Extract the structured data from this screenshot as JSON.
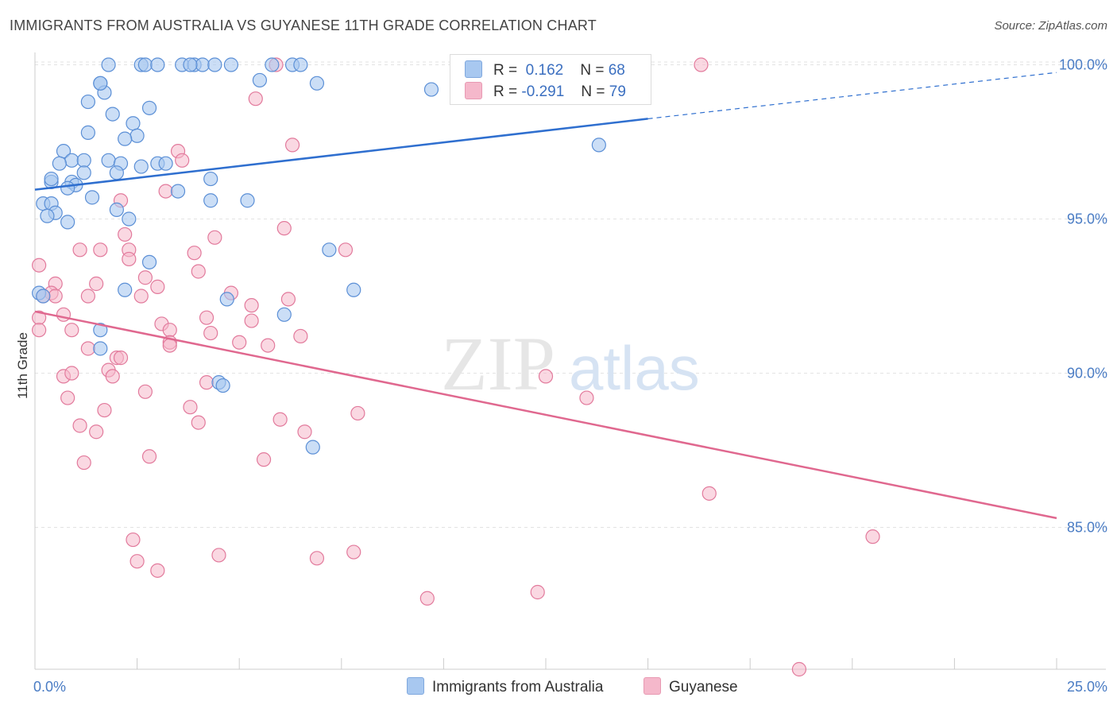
{
  "header": {
    "title": "IMMIGRANTS FROM AUSTRALIA VS GUYANESE 11TH GRADE CORRELATION CHART",
    "source": "Source: ZipAtlas.com"
  },
  "watermark": {
    "zip": "ZIP",
    "atlas": "atlas"
  },
  "legend": {
    "rows": [
      {
        "r_label": "R =",
        "r_value": "0.162",
        "n_label": "N =",
        "n_value": "68",
        "color": "#a8c8f0"
      },
      {
        "r_label": "R =",
        "r_value": "-0.291",
        "n_label": "N =",
        "n_value": "79",
        "color": "#f5b8cb"
      }
    ]
  },
  "bottom_legend": [
    {
      "label": "Immigrants from Australia",
      "color": "#a8c8f0"
    },
    {
      "label": "Guyanese",
      "color": "#f5b8cb"
    }
  ],
  "colors": {
    "blue_fill": "#a8c8f0",
    "blue_stroke": "#5b8fd6",
    "blue_line": "#2f6fcf",
    "pink_fill": "#f5b8cb",
    "pink_stroke": "#e27a9c",
    "pink_line": "#e0688f",
    "grid": "#e3e3e3",
    "axis": "#cccccc"
  },
  "chart_data": {
    "type": "scatter",
    "title": "IMMIGRANTS FROM AUSTRALIA VS GUYANESE 11TH GRADE CORRELATION CHART",
    "xlabel": "",
    "ylabel": "11th Grade",
    "xlim": [
      0,
      25
    ],
    "ylim": [
      80.4,
      100.4
    ],
    "x_tick_labels": [
      "0.0%",
      "25.0%"
    ],
    "y_ticks": [
      85,
      90,
      95,
      100
    ],
    "y_tick_labels": [
      "85.0%",
      "90.0%",
      "95.0%",
      "100.0%"
    ],
    "grid": true,
    "legend_position": "top-center",
    "series": [
      {
        "name": "Immigrants from Australia",
        "r": 0.162,
        "n": 68,
        "trend": {
          "x_start": 0.0,
          "y_start": 95.95,
          "x_solid_end": 15.0,
          "y_solid_end": 98.25,
          "x_end": 25.0,
          "y_end": 99.75
        },
        "points": [
          [
            2.6,
            100
          ],
          [
            2.7,
            100
          ],
          [
            3.0,
            100
          ],
          [
            3.6,
            100
          ],
          [
            3.9,
            100
          ],
          [
            4.1,
            100
          ],
          [
            4.4,
            100
          ],
          [
            5.8,
            100
          ],
          [
            6.3,
            100
          ],
          [
            6.5,
            100
          ],
          [
            1.8,
            100
          ],
          [
            1.6,
            99.4
          ],
          [
            5.5,
            99.5
          ],
          [
            6.9,
            99.4
          ],
          [
            9.7,
            99.2
          ],
          [
            1.7,
            99.1
          ],
          [
            1.3,
            98.8
          ],
          [
            2.8,
            98.6
          ],
          [
            1.9,
            98.4
          ],
          [
            2.4,
            98.1
          ],
          [
            1.3,
            97.8
          ],
          [
            2.5,
            97.7
          ],
          [
            2.2,
            97.6
          ],
          [
            13.8,
            97.4
          ],
          [
            0.7,
            97.2
          ],
          [
            0.9,
            96.9
          ],
          [
            1.2,
            96.9
          ],
          [
            1.8,
            96.9
          ],
          [
            2.1,
            96.8
          ],
          [
            3.0,
            96.8
          ],
          [
            3.2,
            96.8
          ],
          [
            2.6,
            96.7
          ],
          [
            0.6,
            96.8
          ],
          [
            1.2,
            96.5
          ],
          [
            2.0,
            96.5
          ],
          [
            0.4,
            96.2
          ],
          [
            0.4,
            96.3
          ],
          [
            0.9,
            96.2
          ],
          [
            1.0,
            96.1
          ],
          [
            4.3,
            96.3
          ],
          [
            0.8,
            96.0
          ],
          [
            3.5,
            95.9
          ],
          [
            1.4,
            95.7
          ],
          [
            4.3,
            95.6
          ],
          [
            5.2,
            95.6
          ],
          [
            0.2,
            95.5
          ],
          [
            0.4,
            95.5
          ],
          [
            0.5,
            95.2
          ],
          [
            2.0,
            95.3
          ],
          [
            0.3,
            95.1
          ],
          [
            2.3,
            95.0
          ],
          [
            0.8,
            94.9
          ],
          [
            7.2,
            94.0
          ],
          [
            2.8,
            93.6
          ],
          [
            2.2,
            92.7
          ],
          [
            7.8,
            92.7
          ],
          [
            0.1,
            92.6
          ],
          [
            0.2,
            92.5
          ],
          [
            4.7,
            92.4
          ],
          [
            6.1,
            91.9
          ],
          [
            1.6,
            91.4
          ],
          [
            1.6,
            90.8
          ],
          [
            4.5,
            89.7
          ],
          [
            4.6,
            89.6
          ],
          [
            6.8,
            87.6
          ],
          [
            3.8,
            100
          ],
          [
            4.8,
            100
          ],
          [
            1.6,
            99.4
          ]
        ]
      },
      {
        "name": "Guyanese",
        "r": -0.291,
        "n": 79,
        "trend": {
          "x_start": 0.0,
          "y_start": 92.0,
          "x_end": 25.0,
          "y_end": 85.3
        },
        "points": [
          [
            5.9,
            100
          ],
          [
            16.3,
            100
          ],
          [
            5.4,
            98.9
          ],
          [
            6.3,
            97.4
          ],
          [
            3.5,
            97.2
          ],
          [
            3.6,
            96.9
          ],
          [
            3.2,
            95.9
          ],
          [
            2.1,
            95.6
          ],
          [
            6.1,
            94.7
          ],
          [
            2.2,
            94.5
          ],
          [
            4.4,
            94.4
          ],
          [
            1.1,
            94.0
          ],
          [
            1.6,
            94.0
          ],
          [
            2.3,
            94.0
          ],
          [
            3.9,
            93.9
          ],
          [
            7.6,
            94.0
          ],
          [
            2.3,
            93.7
          ],
          [
            0.1,
            93.5
          ],
          [
            4.0,
            93.3
          ],
          [
            2.7,
            93.1
          ],
          [
            0.5,
            92.9
          ],
          [
            1.5,
            92.9
          ],
          [
            3.0,
            92.8
          ],
          [
            0.4,
            92.6
          ],
          [
            4.8,
            92.6
          ],
          [
            0.5,
            92.5
          ],
          [
            0.2,
            92.5
          ],
          [
            1.3,
            92.5
          ],
          [
            2.6,
            92.5
          ],
          [
            6.2,
            92.4
          ],
          [
            5.3,
            92.2
          ],
          [
            0.7,
            91.9
          ],
          [
            0.1,
            91.8
          ],
          [
            4.2,
            91.8
          ],
          [
            3.1,
            91.6
          ],
          [
            5.3,
            91.7
          ],
          [
            0.9,
            91.4
          ],
          [
            4.3,
            91.3
          ],
          [
            3.3,
            91.4
          ],
          [
            6.5,
            91.2
          ],
          [
            0.1,
            91.4
          ],
          [
            5.0,
            91.0
          ],
          [
            3.3,
            91.0
          ],
          [
            3.3,
            90.9
          ],
          [
            5.7,
            90.9
          ],
          [
            1.3,
            90.8
          ],
          [
            2.0,
            90.5
          ],
          [
            2.1,
            90.5
          ],
          [
            1.8,
            90.1
          ],
          [
            0.7,
            89.9
          ],
          [
            0.9,
            90.0
          ],
          [
            1.9,
            89.9
          ],
          [
            4.2,
            89.7
          ],
          [
            12.5,
            89.9
          ],
          [
            2.7,
            89.4
          ],
          [
            0.8,
            89.2
          ],
          [
            13.5,
            89.2
          ],
          [
            3.8,
            88.9
          ],
          [
            1.7,
            88.8
          ],
          [
            7.9,
            88.7
          ],
          [
            6.0,
            88.5
          ],
          [
            4.0,
            88.4
          ],
          [
            1.1,
            88.3
          ],
          [
            6.6,
            88.1
          ],
          [
            1.5,
            88.1
          ],
          [
            2.8,
            87.3
          ],
          [
            5.6,
            87.2
          ],
          [
            1.2,
            87.1
          ],
          [
            16.5,
            86.1
          ],
          [
            20.5,
            84.7
          ],
          [
            2.4,
            84.6
          ],
          [
            7.8,
            84.2
          ],
          [
            4.5,
            84.1
          ],
          [
            6.9,
            84.0
          ],
          [
            2.5,
            83.9
          ],
          [
            3.0,
            83.6
          ],
          [
            12.3,
            82.9
          ],
          [
            9.6,
            82.7
          ],
          [
            18.7,
            80.4
          ]
        ]
      }
    ]
  }
}
